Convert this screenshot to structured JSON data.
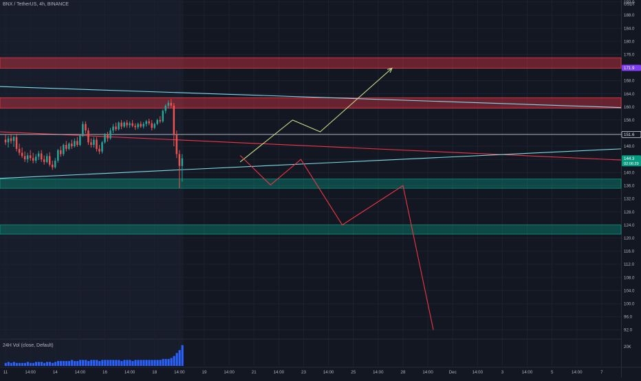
{
  "header": {
    "symbol": "BNX / TetherUS, 4h, BINANCE",
    "currency": "USDT"
  },
  "volume_pane": {
    "label": "24H Vol (close, Default)",
    "axis_label": "20K"
  },
  "colors": {
    "background": "#131722",
    "up": "#26a69a",
    "down": "#ef5350",
    "volume": "#2962ff",
    "resistance_zone": "#f23645",
    "support_zone": "#089981",
    "path_up": "#c6e48b",
    "path_down": "#f23645",
    "cyan_line": "#80deea",
    "red_line": "#f23645",
    "white_line": "#e0e3eb",
    "axis_text": "#b2b5be",
    "purple_badge": "#7e3ff2",
    "green_badge": "#089981"
  },
  "chart_data": {
    "type": "candlestick",
    "title": "BNX / TetherUS, 4h, BINANCE",
    "y_axis": {
      "ylim": [
        89.6,
        192.6
      ],
      "ticks": [
        92.0,
        96.0,
        100.0,
        104.0,
        108.0,
        112.0,
        116.0,
        120.0,
        124.0,
        128.0,
        132.0,
        136.0,
        140.0,
        144.0,
        148.0,
        152.0,
        156.0,
        160.0,
        164.0,
        168.0,
        172.0,
        176.0,
        180.0,
        184.0,
        188.0,
        192.0
      ],
      "tick_labels": [
        "92.0",
        "96.0",
        "100.0",
        "104.0",
        "108.0",
        "112.0",
        "116.0",
        "120.0",
        "124.0",
        "128.0",
        "132.0",
        "136.0",
        "140.0",
        "144.0",
        "148.0",
        "152.0",
        "156.0",
        "160.0",
        "164.0",
        "168.0",
        "172.0",
        "176.0",
        "180.0",
        "184.0",
        "188.0",
        "192.0"
      ]
    },
    "x_axis": {
      "ticks": [
        0,
        9,
        18,
        27,
        36,
        45,
        54,
        63,
        72,
        81,
        90,
        99,
        108,
        117,
        126,
        135,
        144,
        153,
        162,
        171,
        180,
        189,
        198,
        207,
        216
      ],
      "tick_labels": [
        "11",
        "14:00",
        "14",
        "14:00",
        "16",
        "14:00",
        "18",
        "14:00",
        "19",
        "14:00",
        "21",
        "14:00",
        "23",
        "14:00",
        "25",
        "14:00",
        "28",
        "14:00",
        "Dec",
        "14:00",
        "3",
        "14:00",
        "5",
        "14:00",
        "7"
      ]
    },
    "xlim": [
      -2,
      223
    ],
    "price_badges": [
      {
        "value": 171.9,
        "label": "171.9",
        "color": "#7e3ff2"
      },
      {
        "value": 151.6,
        "label": "151.6",
        "color": "#e0e3eb"
      },
      {
        "value": 144.3,
        "label": "144.3",
        "sublabel": "02:06:29",
        "color": "#089981"
      }
    ],
    "zones": [
      {
        "kind": "resistance",
        "low": 171.8,
        "high": 175.0
      },
      {
        "kind": "resistance",
        "low": 159.6,
        "high": 162.8
      },
      {
        "kind": "support",
        "low": 135.2,
        "high": 138.0
      },
      {
        "kind": "support",
        "low": 121.2,
        "high": 124.0
      }
    ],
    "lines": [
      {
        "kind": "cyan-trendline",
        "from": [
          -2,
          166.2
        ],
        "to": [
          223,
          159.8
        ]
      },
      {
        "kind": "red-trendline",
        "from": [
          -2,
          152.4
        ],
        "to": [
          223,
          143.8
        ]
      },
      {
        "kind": "cyan-trendline",
        "from": [
          -2,
          138.2
        ],
        "to": [
          223,
          147.2
        ]
      },
      {
        "kind": "horizontal",
        "from": [
          -2,
          151.6
        ],
        "to": [
          223,
          151.6
        ]
      }
    ],
    "projections": [
      {
        "kind": "bullish",
        "points": [
          [
            85,
            143.2
          ],
          [
            104,
            156.0
          ],
          [
            114,
            152.4
          ],
          [
            140,
            171.8
          ]
        ]
      },
      {
        "kind": "bearish",
        "points": [
          [
            85,
            145.2
          ],
          [
            96,
            136.2
          ],
          [
            107,
            144.0
          ],
          [
            122,
            124.0
          ],
          [
            144,
            136.0
          ],
          [
            155,
            92.0
          ]
        ]
      }
    ],
    "candles": [
      {
        "o": 150.0,
        "h": 151.6,
        "l": 148.4,
        "c": 149.2
      },
      {
        "o": 149.2,
        "h": 151.2,
        "l": 147.6,
        "c": 150.4
      },
      {
        "o": 150.4,
        "h": 151.8,
        "l": 148.8,
        "c": 149.6
      },
      {
        "o": 149.6,
        "h": 151.2,
        "l": 147.8,
        "c": 150.8
      },
      {
        "o": 150.8,
        "h": 151.8,
        "l": 146.4,
        "c": 147.2
      },
      {
        "o": 147.2,
        "h": 148.8,
        "l": 145.2,
        "c": 146.0
      },
      {
        "o": 146.0,
        "h": 147.6,
        "l": 144.4,
        "c": 145.0
      },
      {
        "o": 145.0,
        "h": 146.4,
        "l": 143.2,
        "c": 144.0
      },
      {
        "o": 144.0,
        "h": 146.0,
        "l": 143.0,
        "c": 145.2
      },
      {
        "o": 145.2,
        "h": 146.8,
        "l": 143.6,
        "c": 144.4
      },
      {
        "o": 144.4,
        "h": 146.0,
        "l": 142.8,
        "c": 143.6
      },
      {
        "o": 143.6,
        "h": 145.6,
        "l": 142.8,
        "c": 144.8
      },
      {
        "o": 144.8,
        "h": 146.6,
        "l": 143.8,
        "c": 145.8
      },
      {
        "o": 145.8,
        "h": 146.8,
        "l": 143.2,
        "c": 144.0
      },
      {
        "o": 144.0,
        "h": 145.2,
        "l": 142.4,
        "c": 143.2
      },
      {
        "o": 143.2,
        "h": 145.8,
        "l": 142.8,
        "c": 145.0
      },
      {
        "o": 145.0,
        "h": 146.2,
        "l": 141.8,
        "c": 142.4
      },
      {
        "o": 142.4,
        "h": 143.6,
        "l": 140.8,
        "c": 141.6
      },
      {
        "o": 141.6,
        "h": 144.4,
        "l": 141.2,
        "c": 143.6
      },
      {
        "o": 143.6,
        "h": 147.2,
        "l": 143.0,
        "c": 146.8
      },
      {
        "o": 146.8,
        "h": 148.0,
        "l": 144.8,
        "c": 145.6
      },
      {
        "o": 145.6,
        "h": 148.8,
        "l": 145.0,
        "c": 148.4
      },
      {
        "o": 148.4,
        "h": 149.6,
        "l": 146.4,
        "c": 147.2
      },
      {
        "o": 147.2,
        "h": 149.2,
        "l": 146.8,
        "c": 148.8
      },
      {
        "o": 148.8,
        "h": 150.0,
        "l": 147.2,
        "c": 148.0
      },
      {
        "o": 148.0,
        "h": 150.4,
        "l": 147.6,
        "c": 149.6
      },
      {
        "o": 149.6,
        "h": 150.8,
        "l": 147.8,
        "c": 148.4
      },
      {
        "o": 148.4,
        "h": 151.6,
        "l": 148.0,
        "c": 151.2
      },
      {
        "o": 151.2,
        "h": 155.6,
        "l": 150.8,
        "c": 154.8
      },
      {
        "o": 154.8,
        "h": 155.6,
        "l": 152.0,
        "c": 152.8
      },
      {
        "o": 152.8,
        "h": 153.6,
        "l": 148.4,
        "c": 149.2
      },
      {
        "o": 149.2,
        "h": 150.4,
        "l": 147.6,
        "c": 148.4
      },
      {
        "o": 148.4,
        "h": 150.8,
        "l": 147.6,
        "c": 150.0
      },
      {
        "o": 150.0,
        "h": 150.8,
        "l": 146.4,
        "c": 147.2
      },
      {
        "o": 147.2,
        "h": 148.4,
        "l": 145.6,
        "c": 146.4
      },
      {
        "o": 146.4,
        "h": 149.6,
        "l": 145.8,
        "c": 149.2
      },
      {
        "o": 149.2,
        "h": 152.0,
        "l": 148.8,
        "c": 151.6
      },
      {
        "o": 151.6,
        "h": 152.4,
        "l": 149.4,
        "c": 150.4
      },
      {
        "o": 150.4,
        "h": 153.6,
        "l": 150.0,
        "c": 152.8
      },
      {
        "o": 152.8,
        "h": 154.8,
        "l": 152.0,
        "c": 154.0
      },
      {
        "o": 154.0,
        "h": 155.2,
        "l": 152.6,
        "c": 153.2
      },
      {
        "o": 153.2,
        "h": 155.6,
        "l": 152.8,
        "c": 155.2
      },
      {
        "o": 155.2,
        "h": 156.0,
        "l": 153.2,
        "c": 154.0
      },
      {
        "o": 154.0,
        "h": 155.6,
        "l": 153.6,
        "c": 155.2
      },
      {
        "o": 155.2,
        "h": 156.0,
        "l": 153.6,
        "c": 154.4
      },
      {
        "o": 154.4,
        "h": 155.6,
        "l": 153.6,
        "c": 155.0
      },
      {
        "o": 155.0,
        "h": 156.0,
        "l": 153.8,
        "c": 154.2
      },
      {
        "o": 154.2,
        "h": 155.0,
        "l": 153.0,
        "c": 153.8
      },
      {
        "o": 153.8,
        "h": 155.2,
        "l": 153.2,
        "c": 154.8
      },
      {
        "o": 154.8,
        "h": 155.6,
        "l": 153.6,
        "c": 154.0
      },
      {
        "o": 154.0,
        "h": 155.4,
        "l": 153.4,
        "c": 154.8
      },
      {
        "o": 154.8,
        "h": 156.0,
        "l": 154.0,
        "c": 155.6
      },
      {
        "o": 155.6,
        "h": 156.4,
        "l": 154.4,
        "c": 155.0
      },
      {
        "o": 155.0,
        "h": 156.0,
        "l": 152.8,
        "c": 153.6
      },
      {
        "o": 153.6,
        "h": 155.2,
        "l": 153.2,
        "c": 154.8
      },
      {
        "o": 154.8,
        "h": 156.4,
        "l": 154.4,
        "c": 156.0
      },
      {
        "o": 156.0,
        "h": 157.2,
        "l": 155.0,
        "c": 155.6
      },
      {
        "o": 155.6,
        "h": 159.2,
        "l": 155.2,
        "c": 158.8
      },
      {
        "o": 158.8,
        "h": 160.8,
        "l": 158.0,
        "c": 160.4
      },
      {
        "o": 160.4,
        "h": 162.0,
        "l": 159.6,
        "c": 161.2
      },
      {
        "o": 161.2,
        "h": 162.4,
        "l": 159.8,
        "c": 160.4
      },
      {
        "o": 160.4,
        "h": 161.2,
        "l": 148.0,
        "c": 151.6
      },
      {
        "o": 151.6,
        "h": 152.8,
        "l": 144.4,
        "c": 145.6
      },
      {
        "o": 145.6,
        "h": 146.8,
        "l": 135.2,
        "c": 142.0
      },
      {
        "o": 142.0,
        "h": 145.6,
        "l": 137.2,
        "c": 144.3
      }
    ],
    "volume": [
      3,
      4,
      3,
      4,
      3,
      3,
      3,
      3,
      4,
      3,
      3,
      4,
      4,
      4,
      3,
      4,
      4,
      3,
      4,
      5,
      5,
      5,
      5,
      5,
      6,
      5,
      5,
      6,
      6,
      6,
      5,
      6,
      6,
      6,
      5,
      6,
      6,
      6,
      6,
      6,
      6,
      6,
      5,
      6,
      6,
      6,
      5,
      6,
      6,
      6,
      6,
      6,
      6,
      6,
      6,
      6,
      6,
      7,
      7,
      7,
      8,
      10,
      13,
      16,
      21
    ],
    "volume_max": 25
  }
}
